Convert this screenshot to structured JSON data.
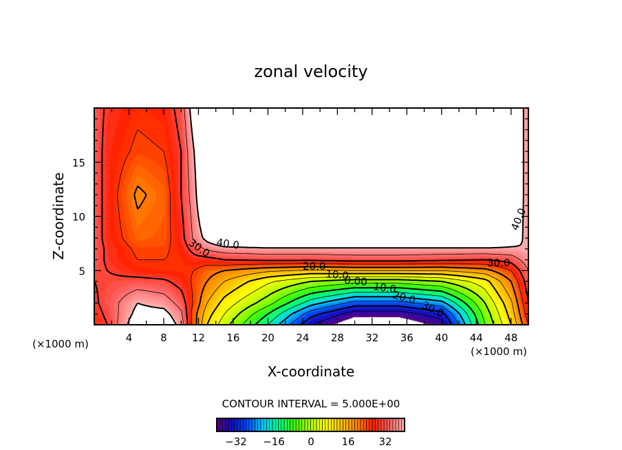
{
  "chart_data": {
    "type": "contour",
    "title": "zonal velocity",
    "xlabel": "X-coordinate",
    "ylabel": "Z-coordinate",
    "x_unit_left": "(×1000 m)",
    "x_unit_right": "(×1000 m)",
    "xlim": [
      0,
      50
    ],
    "ylim": [
      0,
      20
    ],
    "x_ticks": [
      4,
      8,
      12,
      16,
      20,
      24,
      28,
      32,
      36,
      40,
      44,
      48
    ],
    "y_ticks": [
      5,
      10,
      15
    ],
    "contour_interval_text": "CONTOUR INTERVAL = 5.000E+00",
    "contour_interval": 5,
    "negative_contours": "dashed",
    "fill_range": [
      -40,
      40
    ],
    "above_range_fill": "#ffffff",
    "colorbar": {
      "range": [
        -40,
        40
      ],
      "tick_labels": [
        "−32",
        "−16",
        "0",
        "16",
        "32"
      ],
      "tick_values": [
        -32,
        -16,
        0,
        16,
        32
      ],
      "colors": [
        "#5a0080",
        "#1010c0",
        "#0050ff",
        "#00d0ff",
        "#00ff80",
        "#40ff00",
        "#b0ff00",
        "#ffff00",
        "#ffc000",
        "#ff8000",
        "#ff2000",
        "#ff6060",
        "#ffb0b0"
      ]
    },
    "contour_labels": [
      "40.0",
      "30.0",
      "20.0",
      "10.0",
      "0.00",
      "10.0",
      "20.0",
      "30.0",
      "30.0",
      "40.0"
    ],
    "grid_x": [
      0,
      1.5,
      5,
      8,
      10,
      11.5,
      13,
      15,
      20,
      25,
      30,
      35,
      40,
      45,
      48,
      50
    ],
    "grid_z": [
      0,
      1,
      2,
      4,
      5,
      6,
      7,
      8,
      12,
      16,
      20
    ],
    "values": [
      [
        27,
        30,
        45,
        45,
        38,
        22,
        10,
        2,
        -15,
        -35,
        -45,
        -45,
        -38,
        -5,
        10,
        25
      ],
      [
        28,
        31,
        42,
        42,
        36,
        22,
        12,
        5,
        -10,
        -28,
        -38,
        -38,
        -32,
        -3,
        12,
        28
      ],
      [
        29,
        32,
        40,
        38,
        33,
        24,
        15,
        8,
        -3,
        -18,
        -27,
        -27,
        -22,
        0,
        14,
        30
      ],
      [
        30,
        31,
        32,
        31,
        28,
        24,
        20,
        15,
        6,
        0,
        -3,
        -3,
        0,
        8,
        20,
        33
      ],
      [
        32,
        30,
        27,
        26,
        26,
        25,
        22,
        20,
        16,
        14,
        15,
        15,
        15,
        18,
        25,
        35
      ],
      [
        33,
        29,
        25,
        25,
        26,
        28,
        28,
        30,
        31,
        31,
        32,
        32,
        31,
        30,
        32,
        38
      ],
      [
        33,
        29,
        24,
        24,
        27,
        32,
        36,
        38,
        39,
        39,
        39,
        39,
        39,
        39,
        39,
        40
      ],
      [
        33,
        28,
        22,
        23,
        28,
        36,
        42,
        48,
        50,
        50,
        50,
        50,
        50,
        50,
        44,
        38
      ],
      [
        33,
        28,
        19,
        22,
        30,
        38,
        50,
        50,
        50,
        50,
        50,
        50,
        50,
        50,
        45,
        38
      ],
      [
        33,
        28,
        24,
        25,
        30,
        40,
        50,
        50,
        50,
        50,
        50,
        50,
        50,
        50,
        45,
        38
      ],
      [
        33,
        29,
        26,
        27,
        32,
        44,
        50,
        50,
        50,
        50,
        50,
        50,
        50,
        50,
        45,
        38
      ]
    ]
  }
}
